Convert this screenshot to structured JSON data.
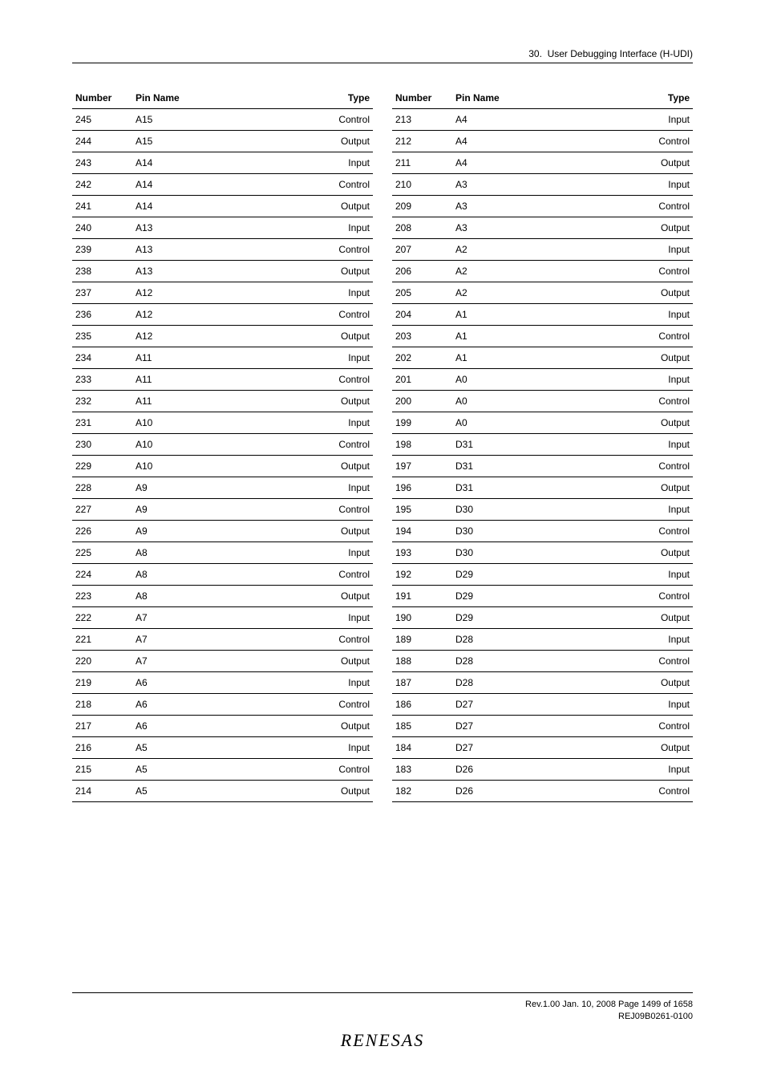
{
  "header": {
    "section_number": "30.",
    "section_title": "User Debugging Interface (H-UDI)"
  },
  "table": {
    "columns": [
      {
        "key": "number",
        "label": "Number",
        "align": "left"
      },
      {
        "key": "pin_name",
        "label": "Pin Name",
        "align": "left"
      },
      {
        "key": "type",
        "label": "Type",
        "align": "right"
      }
    ],
    "left_rows": [
      {
        "number": "245",
        "pin_name": "A15",
        "type": "Control"
      },
      {
        "number": "244",
        "pin_name": "A15",
        "type": "Output"
      },
      {
        "number": "243",
        "pin_name": "A14",
        "type": "Input"
      },
      {
        "number": "242",
        "pin_name": "A14",
        "type": "Control"
      },
      {
        "number": "241",
        "pin_name": "A14",
        "type": "Output"
      },
      {
        "number": "240",
        "pin_name": "A13",
        "type": "Input"
      },
      {
        "number": "239",
        "pin_name": "A13",
        "type": "Control"
      },
      {
        "number": "238",
        "pin_name": "A13",
        "type": "Output"
      },
      {
        "number": "237",
        "pin_name": "A12",
        "type": "Input"
      },
      {
        "number": "236",
        "pin_name": "A12",
        "type": "Control"
      },
      {
        "number": "235",
        "pin_name": "A12",
        "type": "Output"
      },
      {
        "number": "234",
        "pin_name": "A11",
        "type": "Input"
      },
      {
        "number": "233",
        "pin_name": "A11",
        "type": "Control"
      },
      {
        "number": "232",
        "pin_name": "A11",
        "type": "Output"
      },
      {
        "number": "231",
        "pin_name": "A10",
        "type": "Input"
      },
      {
        "number": "230",
        "pin_name": "A10",
        "type": "Control"
      },
      {
        "number": "229",
        "pin_name": "A10",
        "type": "Output"
      },
      {
        "number": "228",
        "pin_name": "A9",
        "type": "Input"
      },
      {
        "number": "227",
        "pin_name": "A9",
        "type": "Control"
      },
      {
        "number": "226",
        "pin_name": "A9",
        "type": "Output"
      },
      {
        "number": "225",
        "pin_name": "A8",
        "type": "Input"
      },
      {
        "number": "224",
        "pin_name": "A8",
        "type": "Control"
      },
      {
        "number": "223",
        "pin_name": "A8",
        "type": "Output"
      },
      {
        "number": "222",
        "pin_name": "A7",
        "type": "Input"
      },
      {
        "number": "221",
        "pin_name": "A7",
        "type": "Control"
      },
      {
        "number": "220",
        "pin_name": "A7",
        "type": "Output"
      },
      {
        "number": "219",
        "pin_name": "A6",
        "type": "Input"
      },
      {
        "number": "218",
        "pin_name": "A6",
        "type": "Control"
      },
      {
        "number": "217",
        "pin_name": "A6",
        "type": "Output"
      },
      {
        "number": "216",
        "pin_name": "A5",
        "type": "Input"
      },
      {
        "number": "215",
        "pin_name": "A5",
        "type": "Control"
      },
      {
        "number": "214",
        "pin_name": "A5",
        "type": "Output"
      }
    ],
    "right_rows": [
      {
        "number": "213",
        "pin_name": "A4",
        "type": "Input"
      },
      {
        "number": "212",
        "pin_name": "A4",
        "type": "Control"
      },
      {
        "number": "211",
        "pin_name": "A4",
        "type": "Output"
      },
      {
        "number": "210",
        "pin_name": "A3",
        "type": "Input"
      },
      {
        "number": "209",
        "pin_name": "A3",
        "type": "Control"
      },
      {
        "number": "208",
        "pin_name": "A3",
        "type": "Output"
      },
      {
        "number": "207",
        "pin_name": "A2",
        "type": "Input"
      },
      {
        "number": "206",
        "pin_name": "A2",
        "type": "Control"
      },
      {
        "number": "205",
        "pin_name": "A2",
        "type": "Output"
      },
      {
        "number": "204",
        "pin_name": "A1",
        "type": "Input"
      },
      {
        "number": "203",
        "pin_name": "A1",
        "type": "Control"
      },
      {
        "number": "202",
        "pin_name": "A1",
        "type": "Output"
      },
      {
        "number": "201",
        "pin_name": "A0",
        "type": "Input"
      },
      {
        "number": "200",
        "pin_name": "A0",
        "type": "Control"
      },
      {
        "number": "199",
        "pin_name": "A0",
        "type": "Output"
      },
      {
        "number": "198",
        "pin_name": "D31",
        "type": "Input"
      },
      {
        "number": "197",
        "pin_name": "D31",
        "type": "Control"
      },
      {
        "number": "196",
        "pin_name": "D31",
        "type": "Output"
      },
      {
        "number": "195",
        "pin_name": "D30",
        "type": "Input"
      },
      {
        "number": "194",
        "pin_name": "D30",
        "type": "Control"
      },
      {
        "number": "193",
        "pin_name": "D30",
        "type": "Output"
      },
      {
        "number": "192",
        "pin_name": "D29",
        "type": "Input"
      },
      {
        "number": "191",
        "pin_name": "D29",
        "type": "Control"
      },
      {
        "number": "190",
        "pin_name": "D29",
        "type": "Output"
      },
      {
        "number": "189",
        "pin_name": "D28",
        "type": "Input"
      },
      {
        "number": "188",
        "pin_name": "D28",
        "type": "Control"
      },
      {
        "number": "187",
        "pin_name": "D28",
        "type": "Output"
      },
      {
        "number": "186",
        "pin_name": "D27",
        "type": "Input"
      },
      {
        "number": "185",
        "pin_name": "D27",
        "type": "Control"
      },
      {
        "number": "184",
        "pin_name": "D27",
        "type": "Output"
      },
      {
        "number": "183",
        "pin_name": "D26",
        "type": "Input"
      },
      {
        "number": "182",
        "pin_name": "D26",
        "type": "Control"
      }
    ]
  },
  "footer": {
    "rev_line": "Rev.1.00  Jan. 10, 2008  Page 1499 of 1658",
    "doc_id": "REJ09B0261-0100",
    "logo_text": "RENESAS"
  }
}
